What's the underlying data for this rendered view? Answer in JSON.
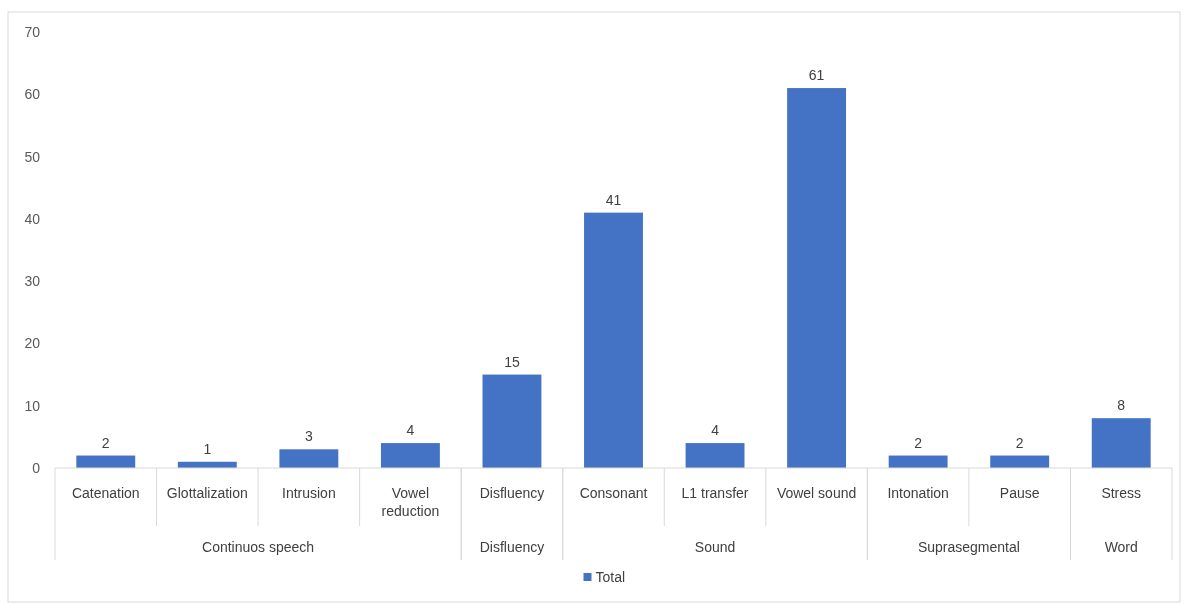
{
  "chart_data": [
    {
      "type": "bar",
      "categories": [
        "Catenation",
        "Glottalization",
        "Intrusion",
        "Vowel reduction"
      ],
      "series": [
        {
          "name": "Total",
          "color": "#4472c4",
          "values": [
            2,
            1,
            3,
            4
          ]
        }
      ],
      "xlabel": "Continuos speech",
      "ylim": [
        0,
        70
      ],
      "yticks": [
        0,
        10,
        20,
        30,
        40,
        50,
        60,
        70
      ],
      "data_labels": true,
      "legend": "bottom"
    },
    {
      "type": "bar",
      "categories": [
        "Disfluency"
      ],
      "series": [
        {
          "color": "#4472c4",
          "values": [
            15
          ]
        }
      ],
      "xlabel": "Disfluency",
      "ylim": [
        0,
        70
      ],
      "data_labels": true,
      "tick_labels": "x"
    },
    {
      "type": "bar",
      "categories": [
        "Consonant",
        "L1 transfer",
        "Vowel sound"
      ],
      "series": [
        {
          "color": "#4472c4",
          "values": [
            41,
            4,
            61
          ]
        }
      ],
      "xlabel": "Sound",
      "ylim": [
        0,
        70
      ],
      "data_labels": true,
      "tick_labels": "x"
    },
    {
      "type": "bar",
      "categories": [
        "Intonation",
        "Pause"
      ],
      "series": [
        {
          "color": "#4472c4",
          "values": [
            2,
            2
          ]
        }
      ],
      "xlabel": "Suprasegmental",
      "ylim": [
        0,
        70
      ],
      "data_labels": true,
      "tick_labels": "x"
    },
    {
      "type": "bar",
      "categories": [
        "Stress"
      ],
      "series": [
        {
          "color": "#4472c4",
          "values": [
            8
          ]
        }
      ],
      "xlabel": "Word",
      "ylim": [
        0,
        70
      ],
      "data_labels": true,
      "tick_labels": "x"
    }
  ]
}
